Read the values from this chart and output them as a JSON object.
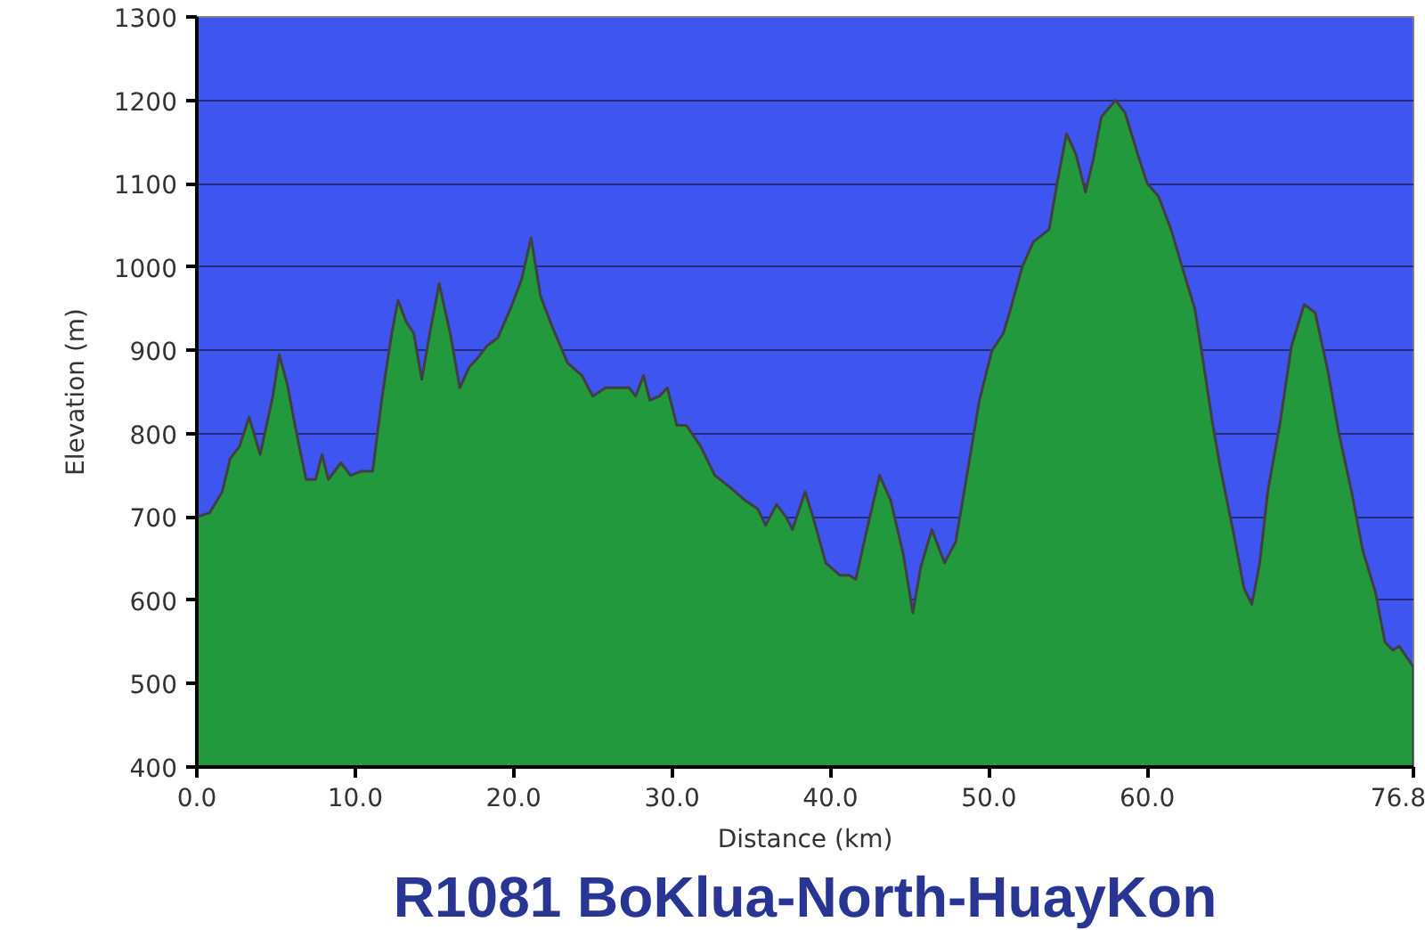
{
  "chart_data": {
    "type": "area",
    "title": "R1081 BoKlua-North-HuayKon",
    "xlabel": "Distance (km)",
    "ylabel": "Elevation (m)",
    "x": [
      0.0,
      0.8,
      1.6,
      2.1,
      2.7,
      3.3,
      4.0,
      4.8,
      5.2,
      5.7,
      6.3,
      6.9,
      7.5,
      7.9,
      8.3,
      9.1,
      9.7,
      10.4,
      11.1,
      11.7,
      12.3,
      12.7,
      13.2,
      13.7,
      14.2,
      14.7,
      15.3,
      16.0,
      16.6,
      17.2,
      17.7,
      18.3,
      19.0,
      19.8,
      20.5,
      21.1,
      21.7,
      22.4,
      23.4,
      24.3,
      25.0,
      25.8,
      27.3,
      27.7,
      28.2,
      28.6,
      29.2,
      29.7,
      30.3,
      30.9,
      31.8,
      32.7,
      33.7,
      34.6,
      35.4,
      35.9,
      36.6,
      37.2,
      37.6,
      38.4,
      38.9,
      39.7,
      40.6,
      41.2,
      41.6,
      42.3,
      43.1,
      43.8,
      44.6,
      45.2,
      45.7,
      46.4,
      47.2,
      47.9,
      48.7,
      49.4,
      50.2,
      50.9,
      51.3,
      52.1,
      52.8,
      53.8,
      54.3,
      54.9,
      55.5,
      56.1,
      56.6,
      57.1,
      58.0,
      58.6,
      59.4,
      60.0,
      60.7,
      61.5,
      62.2,
      63.0,
      63.5,
      64.1,
      64.6,
      65.4,
      66.1,
      66.6,
      67.1,
      67.6,
      68.4,
      69.1,
      69.9,
      70.6,
      71.4,
      72.1,
      72.9,
      73.6,
      74.4,
      75.0,
      75.5,
      75.9,
      76.8
    ],
    "values": [
      700,
      705,
      730,
      770,
      785,
      820,
      775,
      845,
      895,
      860,
      800,
      745,
      745,
      775,
      745,
      765,
      750,
      755,
      755,
      845,
      920,
      960,
      935,
      920,
      865,
      920,
      980,
      920,
      855,
      880,
      890,
      905,
      915,
      950,
      985,
      1035,
      965,
      930,
      885,
      870,
      845,
      855,
      855,
      845,
      870,
      840,
      845,
      855,
      810,
      810,
      785,
      750,
      735,
      720,
      710,
      690,
      715,
      700,
      685,
      730,
      700,
      645,
      630,
      630,
      625,
      685,
      750,
      720,
      655,
      585,
      640,
      685,
      645,
      670,
      760,
      840,
      900,
      920,
      945,
      1000,
      1030,
      1045,
      1100,
      1160,
      1135,
      1090,
      1130,
      1180,
      1200,
      1185,
      1135,
      1100,
      1085,
      1045,
      1000,
      950,
      890,
      815,
      760,
      685,
      615,
      595,
      645,
      730,
      815,
      905,
      955,
      945,
      875,
      800,
      730,
      660,
      610,
      550,
      540,
      545,
      520
    ],
    "color": "#22993d",
    "xlim": [
      0,
      76.8
    ],
    "ylim": [
      400,
      1300
    ],
    "xticks": [
      {
        "value": 0,
        "label": "0.0"
      },
      {
        "value": 10,
        "label": "10.0"
      },
      {
        "value": 20,
        "label": "20.0"
      },
      {
        "value": 30,
        "label": "30.0"
      },
      {
        "value": 40,
        "label": "40.0"
      },
      {
        "value": 50,
        "label": "50.0"
      },
      {
        "value": 60,
        "label": "60.0"
      },
      76.8
    ],
    "yticks": [
      400,
      500,
      600,
      700,
      800,
      900,
      1000,
      1100,
      1200,
      1300
    ],
    "grid": "y"
  }
}
